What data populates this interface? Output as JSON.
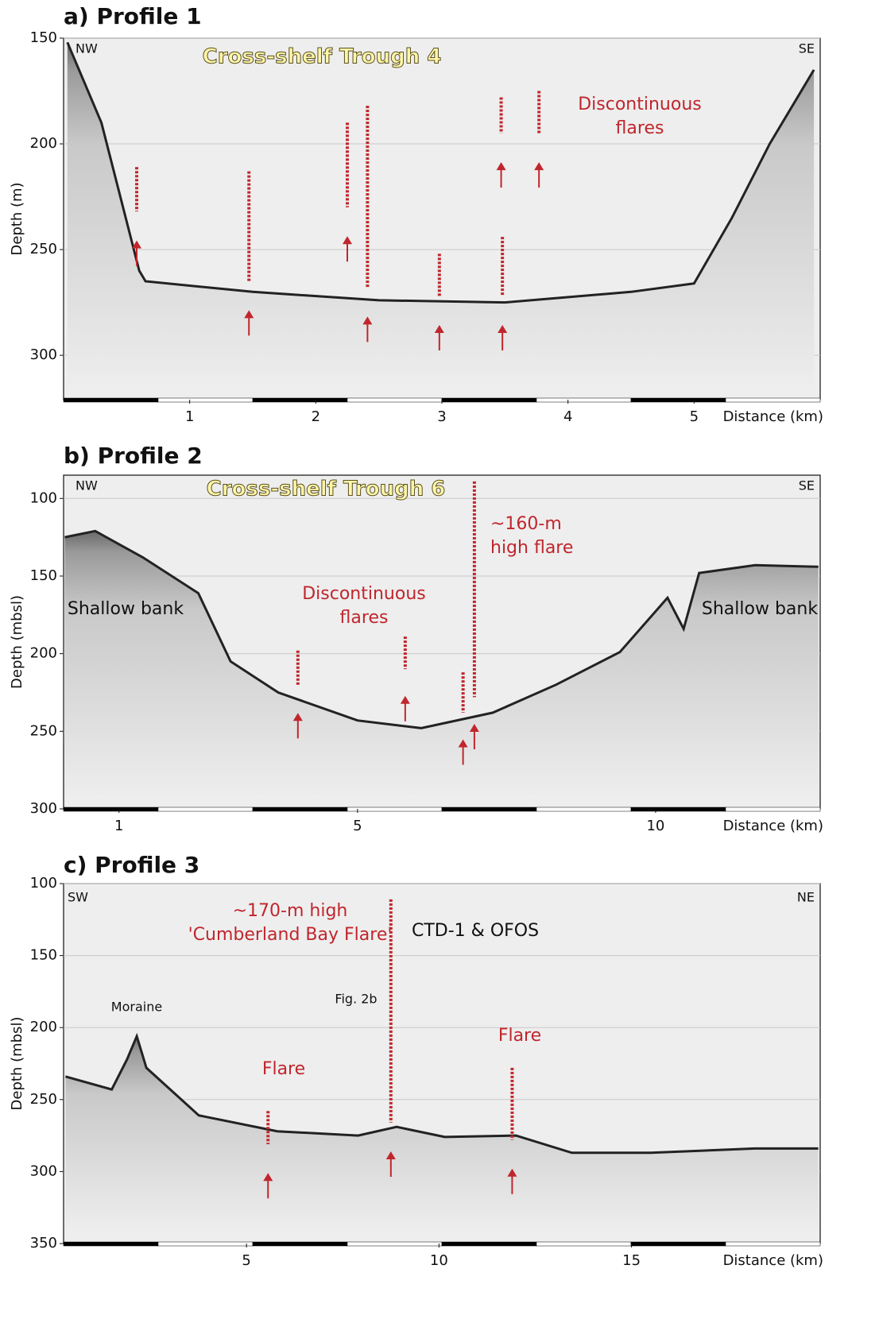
{
  "chart_data": [
    {
      "type": "line",
      "title": "a) Profile 1",
      "ylabel": "Depth (m)",
      "xlabel": "Distance (km)",
      "ylim": [
        150,
        321
      ],
      "yticks": [
        150,
        200,
        250,
        300
      ],
      "xlim": [
        0,
        6
      ],
      "xticks": [
        1,
        2,
        3,
        4,
        5
      ],
      "grid": true,
      "color": "#222222",
      "x": [
        0.03,
        0.3,
        0.6,
        0.65,
        1.5,
        2.5,
        3.5,
        4.5,
        5.0,
        5.3,
        5.6,
        5.95
      ],
      "values": [
        152,
        190,
        260,
        265,
        270,
        274,
        275,
        270,
        266,
        235,
        200,
        165
      ],
      "flares": [
        {
          "x": 0.58,
          "top": 211,
          "bottom": 232
        },
        {
          "x": 1.47,
          "top": 213,
          "bottom": 265
        },
        {
          "x": 2.25,
          "top": 190,
          "bottom": 230
        },
        {
          "x": 2.41,
          "top": 182,
          "bottom": 268
        },
        {
          "x": 2.98,
          "top": 252,
          "bottom": 272
        },
        {
          "x": 3.48,
          "top": 244,
          "bottom": 272
        },
        {
          "x": 3.47,
          "top": 178,
          "bottom": 195
        },
        {
          "x": 3.77,
          "top": 175,
          "bottom": 195
        }
      ],
      "flare_color": "#c0262d",
      "annotations": [
        [
          "NW"
        ],
        [
          "SE"
        ],
        [
          "Cross-shelf Trough 4"
        ],
        [
          "Discontinuous",
          "flares"
        ]
      ]
    },
    {
      "type": "line",
      "title": "b) Profile 2",
      "ylabel": "Depth (mbsl)",
      "xlabel": "Distance (km)",
      "ylim": [
        85,
        300
      ],
      "yticks": [
        100,
        150,
        200,
        250,
        300
      ],
      "xlim": [
        0.07,
        12.76
      ],
      "xticks": [
        1,
        5,
        10
      ],
      "grid": true,
      "color": "#222222",
      "x": [
        0.09,
        0.6,
        1.4,
        2.33,
        2.87,
        3.67,
        5.0,
        6.07,
        7.27,
        8.33,
        9.4,
        10.2,
        10.47,
        10.73,
        11.67,
        12.73
      ],
      "values": [
        125,
        121,
        138,
        161,
        205,
        225,
        243,
        248,
        238,
        220,
        199,
        164,
        184,
        148,
        143,
        144
      ],
      "flares": [
        {
          "x": 4.0,
          "top": 198,
          "bottom": 221
        },
        {
          "x": 5.8,
          "top": 189,
          "bottom": 210
        },
        {
          "x": 6.77,
          "top": 212,
          "bottom": 238
        },
        {
          "x": 6.96,
          "top": 89,
          "bottom": 228
        }
      ],
      "flare_color": "#c0262d",
      "annotations": [
        [
          "NW"
        ],
        [
          "SE"
        ],
        [
          "Cross-shelf Trough 6"
        ],
        [
          "~160-m",
          "high flare"
        ],
        [
          "Discontinuous",
          "flares"
        ],
        [
          "Shallow bank"
        ],
        [
          "Shallow bank"
        ]
      ]
    },
    {
      "type": "line",
      "title": "c) Profile 3",
      "ylabel": "Depth (mbsl)",
      "xlabel": "Distance (km)",
      "ylim": [
        100,
        350
      ],
      "yticks": [
        100,
        150,
        200,
        250,
        300,
        350
      ],
      "xlim": [
        0.25,
        19.9
      ],
      "xticks": [
        5,
        10,
        15
      ],
      "grid": true,
      "color": "#222222",
      "x": [
        0.3,
        1.5,
        1.9,
        2.15,
        2.4,
        3.76,
        5.8,
        7.9,
        8.9,
        10.15,
        12.0,
        13.45,
        15.5,
        18.2,
        19.85
      ],
      "values": [
        234,
        243,
        222,
        206,
        228,
        261,
        272,
        275,
        269,
        276,
        275,
        287,
        287,
        284,
        284
      ],
      "flares": [
        {
          "x": 5.56,
          "top": 258,
          "bottom": 281
        },
        {
          "x": 8.75,
          "top": 111,
          "bottom": 266
        },
        {
          "x": 11.9,
          "top": 228,
          "bottom": 278
        }
      ],
      "flare_color": "#c0262d",
      "annotations": [
        [
          "SW"
        ],
        [
          "NE"
        ],
        [
          "~170-m high",
          "'Cumberland Bay Flare'"
        ],
        [
          "CTD-1 & OFOS"
        ],
        [
          "Fig. 2b"
        ],
        [
          "Moraine"
        ],
        [
          "Flare"
        ],
        [
          "Flare"
        ]
      ]
    }
  ]
}
